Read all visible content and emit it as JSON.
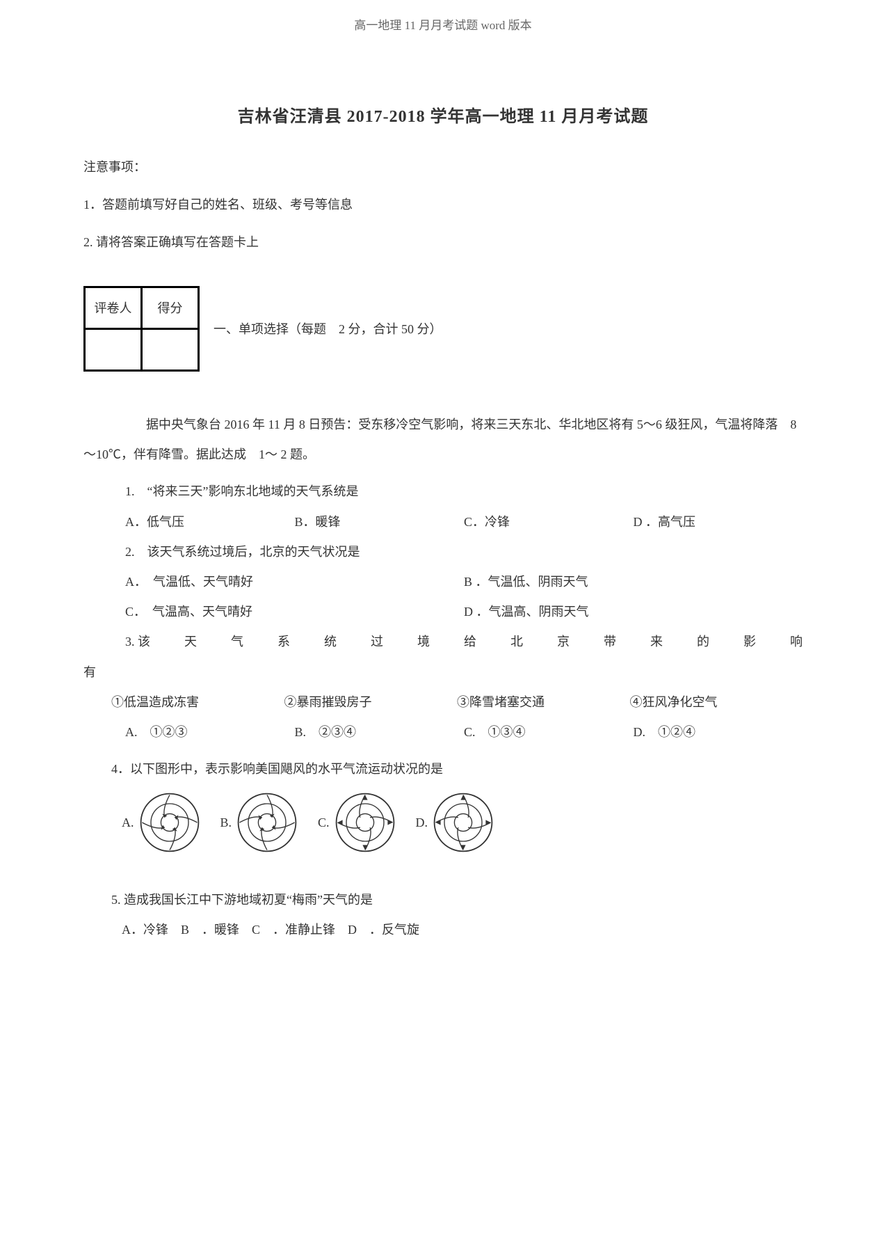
{
  "header": "高一地理 11 月月考试题 word 版本",
  "title": "吉林省汪清县  2017-2018 学年高一地理  11 月月考试题",
  "notice": {
    "heading": "注意事项：",
    "items": [
      "1．答题前填写好自己的姓名、班级、考号等信息",
      "2. 请将答案正确填写在答题卡上"
    ]
  },
  "scoreTable": {
    "col1": "评卷人",
    "col2": "得分"
  },
  "section1": "一、单项选择（每题　2 分，合计  50 分）",
  "passage1": "据中央气象台  2016 年 11 月 8 日预告：受东移冷空气影响，将来三天东北、华北地区将有 5～6 级狂风，气温将降落　8～10℃，伴有降雪。据此达成　1～ 2 题。",
  "q1": {
    "stem": "1.　“将来三天”影响东北地域的天气系统是",
    "A": "A．低气压",
    "B": "B．暖锋",
    "C": "C．冷锋",
    "D": "D ．高气压"
  },
  "q2": {
    "stem": "2.　该天气系统过境后，北京的天气状况是",
    "A": "A．　气温低、天气晴好",
    "B": "B ．气温低、阴雨天气",
    "C": "C．　气温高、天气晴好",
    "D": "D ．气温高、阴雨天气"
  },
  "q3": {
    "stem_prefix": "3. 该",
    "stem_chars": [
      "天",
      "气",
      "系",
      "统",
      "过",
      "境",
      "给",
      "北",
      "京",
      "带",
      "来",
      "的",
      "影",
      "响"
    ],
    "tail": "有",
    "subs": [
      "①低温造成冻害",
      "②暴雨摧毁房子",
      "③降雪堵塞交通",
      "④狂风净化空气"
    ],
    "A": "A.　①②③",
    "B": "B.　②③④",
    "C": "C.　①③④",
    "D": "D.　①②④"
  },
  "q4": {
    "stem": "4．以下图形中，表示影响美国飓风的水平气流运动状况的是",
    "labels": {
      "A": "A.",
      "B": "B.",
      "C": "C.",
      "D": "D."
    }
  },
  "q5": {
    "stem": "5. 造成我国长江中下游地域初夏“梅雨”天气的是",
    "options": "A．冷锋　B　．暖锋　C　．准静止锋　D　．反气旋"
  },
  "diagram": {
    "stroke": "#333333",
    "fill": "#ffffff",
    "size": 90
  }
}
